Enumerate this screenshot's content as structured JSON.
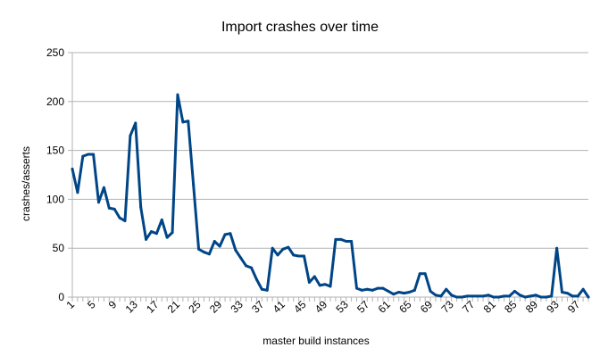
{
  "chart_data": {
    "type": "line",
    "title": "Import crashes over time",
    "xlabel": "master build instances",
    "ylabel": "crashes/asserts",
    "ylim": [
      0,
      250
    ],
    "yticks": [
      0,
      50,
      100,
      150,
      200,
      250
    ],
    "grid": true,
    "x": [
      1,
      2,
      3,
      4,
      5,
      6,
      7,
      8,
      9,
      10,
      11,
      12,
      13,
      14,
      15,
      16,
      17,
      18,
      19,
      20,
      21,
      22,
      23,
      24,
      25,
      26,
      27,
      28,
      29,
      30,
      31,
      32,
      33,
      34,
      35,
      36,
      37,
      38,
      39,
      40,
      41,
      42,
      43,
      44,
      45,
      46,
      47,
      48,
      49,
      50,
      51,
      52,
      53,
      54,
      55,
      56,
      57,
      58,
      59,
      60,
      61,
      62,
      63,
      64,
      65,
      66,
      67,
      68,
      69,
      70,
      71,
      72,
      73,
      74,
      75,
      76,
      77,
      78,
      79,
      80,
      81,
      82,
      83,
      84,
      85,
      86,
      87,
      88,
      89,
      90,
      91,
      92,
      93,
      94,
      95,
      96,
      97,
      98,
      99
    ],
    "x_tick_labels": [
      "1",
      "5",
      "9",
      "13",
      "17",
      "21",
      "25",
      "29",
      "33",
      "37",
      "41",
      "45",
      "49",
      "53",
      "57",
      "61",
      "65",
      "69",
      "73",
      "77",
      "81",
      "85",
      "89",
      "93",
      "97"
    ],
    "series": [
      {
        "color": "#004586",
        "values": [
          131,
          107,
          144,
          146,
          146,
          97,
          112,
          91,
          90,
          81,
          78,
          165,
          178,
          92,
          59,
          67,
          65,
          79,
          61,
          66,
          207,
          179,
          180,
          115,
          49,
          46,
          44,
          57,
          52,
          64,
          65,
          48,
          40,
          32,
          30,
          18,
          8,
          7,
          50,
          43,
          49,
          51,
          43,
          42,
          42,
          15,
          21,
          12,
          13,
          11,
          59,
          59,
          57,
          57,
          9,
          7,
          8,
          7,
          9,
          9,
          6,
          3,
          5,
          4,
          5,
          7,
          24,
          24,
          6,
          2,
          1,
          8,
          2,
          0,
          0,
          1,
          1,
          1,
          1,
          2,
          0,
          0,
          1,
          1,
          6,
          2,
          0,
          1,
          2,
          0,
          0,
          1,
          50,
          5,
          4,
          1,
          1,
          8,
          0
        ]
      }
    ]
  }
}
